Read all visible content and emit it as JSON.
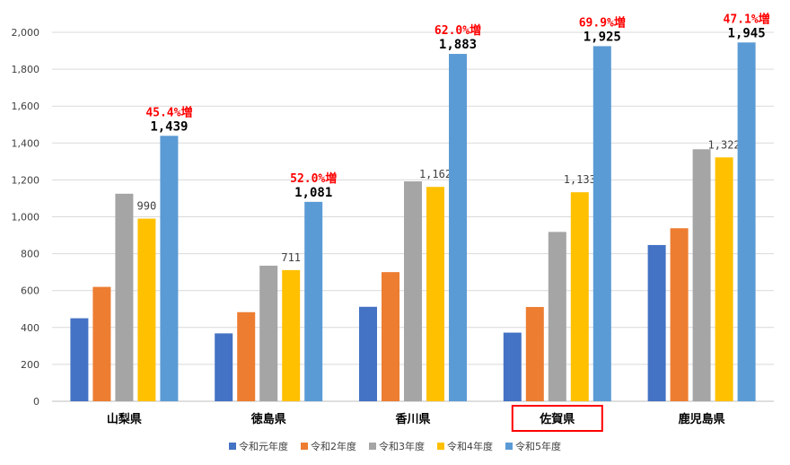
{
  "chart_data": {
    "type": "bar",
    "title": "",
    "xlabel": "",
    "ylabel": "",
    "ylim": [
      0,
      2000
    ],
    "yticks": [
      0,
      200,
      400,
      600,
      800,
      1000,
      1200,
      1400,
      1600,
      1800,
      2000
    ],
    "ytick_labels": [
      "0",
      "200",
      "400",
      "600",
      "800",
      "1,000",
      "1,200",
      "1,400",
      "1,600",
      "1,800",
      "2,000"
    ],
    "grid": true,
    "legend_position": "bottom",
    "categories": [
      "山梨県",
      "徳島県",
      "香川県",
      "佐賀県",
      "鹿児島県"
    ],
    "highlighted_category": "佐賀県",
    "highlight_color": "#ff0000",
    "series": [
      {
        "name": "令和元年度",
        "color": "#4472c4",
        "values": [
          450,
          368,
          512,
          372,
          847
        ]
      },
      {
        "name": "令和2年度",
        "color": "#ed7d31",
        "values": [
          620,
          483,
          700,
          511,
          938
        ]
      },
      {
        "name": "令和3年度",
        "color": "#a5a5a5",
        "values": [
          1125,
          735,
          1192,
          918,
          1366
        ]
      },
      {
        "name": "令和4年度",
        "color": "#ffc000",
        "values": [
          990,
          711,
          1162,
          1133,
          1322
        ]
      },
      {
        "name": "令和5年度",
        "color": "#5b9bd5",
        "values": [
          1439,
          1081,
          1883,
          1925,
          1945
        ]
      }
    ],
    "data_labels": {
      "令和4年度": [
        "990",
        "711",
        "1,162",
        "1,133",
        "1,322"
      ],
      "令和5年度": [
        "1,439",
        "1,081",
        "1,883",
        "1,925",
        "1,945"
      ]
    },
    "annotations": [
      "45.4%増",
      "52.0%増",
      "62.0%増",
      "69.9%増",
      "47.1%増"
    ],
    "annotation_color": "#ff0000"
  }
}
